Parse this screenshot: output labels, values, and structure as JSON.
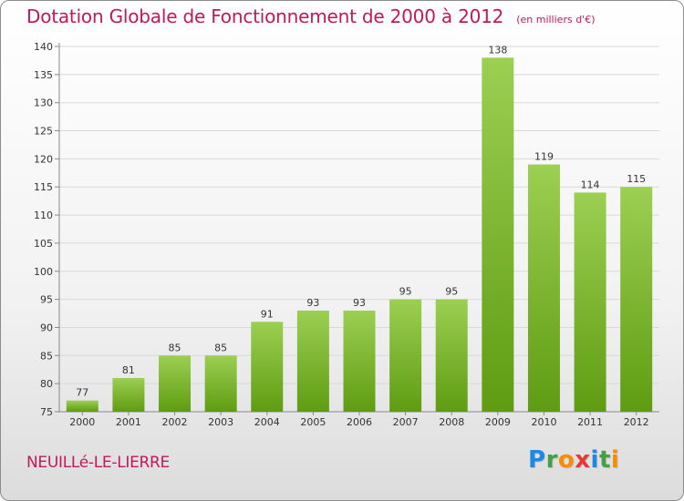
{
  "header": {
    "title": "Dotation Globale de Fonctionnement de 2000 à 2012",
    "subtitle": "(en milliers d'€)"
  },
  "footer": {
    "town": "NEUILLé-LE-LIERRE",
    "logo_letters": [
      {
        "ch": "P",
        "color": "#1e88e5"
      },
      {
        "ch": "r",
        "color": "#43a047"
      },
      {
        "ch": "o",
        "color": "#fb8c00"
      },
      {
        "ch": "x",
        "color": "#e53935"
      },
      {
        "ch": "i",
        "color": "#1e88e5"
      },
      {
        "ch": "t",
        "color": "#43a047"
      },
      {
        "ch": "i",
        "color": "#fb8c00"
      }
    ]
  },
  "colors": {
    "bar_light": "#9ccf52",
    "bar_dark": "#5f9c12",
    "axis": "#888888",
    "grid": "#d9d9d9",
    "text": "#333333",
    "accent": "#c2185b"
  },
  "chart_data": {
    "type": "bar",
    "title": "Dotation Globale de Fonctionnement de 2000 à 2012",
    "subtitle": "(en milliers d'€)",
    "categories": [
      "2000",
      "2001",
      "2002",
      "2003",
      "2004",
      "2005",
      "2006",
      "2007",
      "2008",
      "2009",
      "2010",
      "2011",
      "2012"
    ],
    "values": [
      77,
      81,
      85,
      85,
      91,
      93,
      93,
      95,
      95,
      138,
      119,
      114,
      115
    ],
    "ylim": [
      75,
      140
    ],
    "yticks": [
      75,
      80,
      85,
      90,
      95,
      100,
      105,
      110,
      115,
      120,
      125,
      130,
      135,
      140
    ],
    "grid": true,
    "xlabel": "",
    "ylabel": ""
  }
}
